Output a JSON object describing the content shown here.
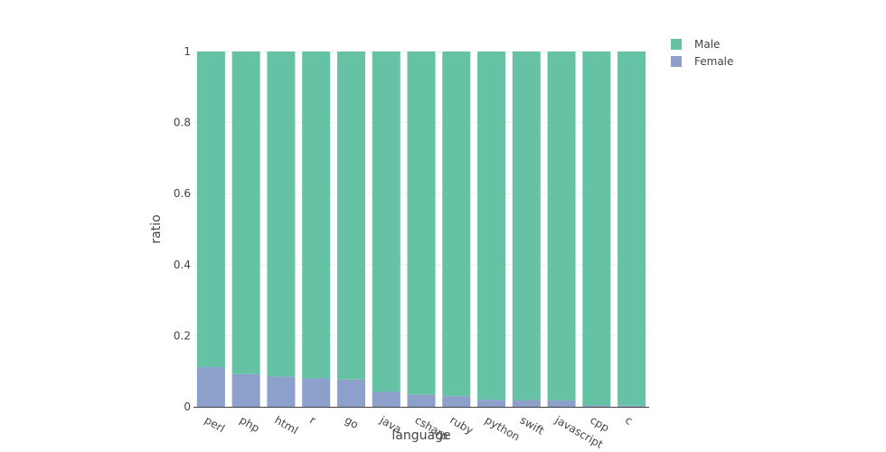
{
  "chart_data": {
    "type": "bar",
    "stacked": true,
    "categories": [
      "perl",
      "php",
      "html",
      "r",
      "go",
      "java",
      "csharp",
      "ruby",
      "python",
      "swift",
      "javascript",
      "cpp",
      "c"
    ],
    "series": [
      {
        "name": "Female",
        "color": "#8da0cb",
        "values": [
          0.112,
          0.092,
          0.085,
          0.08,
          0.077,
          0.042,
          0.034,
          0.03,
          0.02,
          0.019,
          0.018,
          0.004,
          0.003
        ]
      },
      {
        "name": "Male",
        "color": "#66c2a5",
        "values": [
          0.888,
          0.908,
          0.915,
          0.92,
          0.923,
          0.958,
          0.966,
          0.97,
          0.98,
          0.981,
          0.982,
          0.996,
          0.997
        ]
      }
    ],
    "legend_order": [
      "Male",
      "Female"
    ],
    "legend_position": "top-right",
    "xlabel": "language",
    "ylabel": "ratio",
    "ylim": [
      0,
      1
    ],
    "yticks": [
      0,
      0.2,
      0.4,
      0.6,
      0.8,
      1
    ],
    "ytick_labels": [
      "0",
      "0.2",
      "0.4",
      "0.6",
      "0.8",
      "1"
    ],
    "grid": true,
    "grid_color": "#eeeeee",
    "axis_color": "#444444"
  }
}
